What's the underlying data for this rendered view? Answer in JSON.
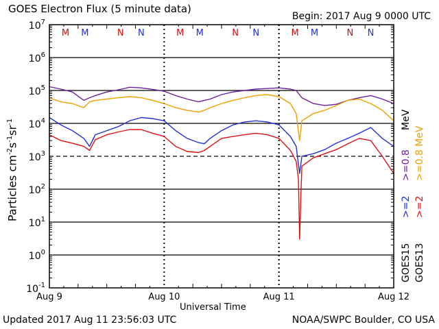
{
  "header": {
    "title": "GOES Electron Flux (5 minute data)",
    "begin": "Begin: 2017 Aug 9 0000 UTC"
  },
  "footer": {
    "updated": "Updated 2017 Aug 11 23:56:03 UTC",
    "credit": "NOAA/SWPC Boulder, CO USA"
  },
  "colors": {
    "goes15_2mev": "#1f2fd6",
    "goes13_2mev": "#e01010",
    "goes15_08mev": "#6a1fa0",
    "goes13_08mev": "#f0a000",
    "marker_m": "#d01010",
    "marker_n": "#d01010",
    "marker_blue": "#1f2fd6"
  },
  "chart_data": {
    "type": "line",
    "title": "GOES Electron Flux (5 minute data)",
    "xlabel": "Universal Time",
    "ylabel": "Particles cm-2s-1sr-1",
    "yscale": "log",
    "ylim": [
      0.1,
      10000000
    ],
    "xlim": [
      0,
      3
    ],
    "x_ticks": [
      {
        "x": 0,
        "label": "Aug 9"
      },
      {
        "x": 1,
        "label": "Aug 10"
      },
      {
        "x": 2,
        "label": "Aug 11"
      },
      {
        "x": 3,
        "label": "Aug 12"
      }
    ],
    "y_ticks": [
      {
        "base": "10",
        "exp": "7"
      },
      {
        "base": "10",
        "exp": "6"
      },
      {
        "base": "10",
        "exp": "5"
      },
      {
        "base": "10",
        "exp": "4"
      },
      {
        "base": "10",
        "exp": "3"
      },
      {
        "base": "10",
        "exp": "2"
      },
      {
        "base": "10",
        "exp": "1"
      },
      {
        "base": "10",
        "exp": "0"
      },
      {
        "base": "10",
        "exp": "-1"
      }
    ],
    "threshold": 1000,
    "markers": [
      {
        "x": 0.14,
        "label": "M",
        "color": "#d01010"
      },
      {
        "x": 0.31,
        "label": "M",
        "color": "#1f2fd6"
      },
      {
        "x": 0.62,
        "label": "N",
        "color": "#d01010"
      },
      {
        "x": 0.8,
        "label": "N",
        "color": "#1f2fd6"
      },
      {
        "x": 1.14,
        "label": "M",
        "color": "#d01010"
      },
      {
        "x": 1.31,
        "label": "M",
        "color": "#1f2fd6"
      },
      {
        "x": 1.62,
        "label": "N",
        "color": "#d01010"
      },
      {
        "x": 1.8,
        "label": "N",
        "color": "#1f2fd6"
      },
      {
        "x": 2.14,
        "label": "M",
        "color": "#d01010"
      },
      {
        "x": 2.31,
        "label": "M",
        "color": "#1f2fd6"
      },
      {
        "x": 2.62,
        "label": "N",
        "color": "#d01010"
      },
      {
        "x": 2.8,
        "label": "N",
        "color": "#1f2fd6"
      }
    ],
    "legend": [
      {
        "label": ">=0.8 MeV",
        "color": "#f0a000",
        "group": "GOES13"
      },
      {
        "label": ">=0.8",
        "color": "#6a1fa0",
        "group": "GOES15"
      },
      {
        "label": "MeV",
        "color": "#000000",
        "group": "units"
      },
      {
        "label": ">=2",
        "color": "#e01010",
        "group": "GOES13"
      },
      {
        "label": ">=2",
        "color": "#1f2fd6",
        "group": "GOES15"
      },
      {
        "label": "GOES13",
        "color": "#000000",
        "group": "sat"
      },
      {
        "label": "GOES15",
        "color": "#000000",
        "group": "sat"
      }
    ],
    "series": [
      {
        "color": "#6a1fa0",
        "x": [
          0,
          0.1,
          0.2,
          0.3,
          0.35,
          0.4,
          0.5,
          0.6,
          0.7,
          0.8,
          0.9,
          1.0,
          1.1,
          1.2,
          1.3,
          1.35,
          1.4,
          1.5,
          1.6,
          1.7,
          1.8,
          1.9,
          2.0,
          2.1,
          2.15,
          2.2,
          2.3,
          2.4,
          2.5,
          2.6,
          2.7,
          2.8,
          2.9,
          3.0
        ],
        "values": [
          130000,
          110000,
          90000,
          50000,
          60000,
          70000,
          90000,
          105000,
          125000,
          120000,
          108000,
          95000,
          70000,
          55000,
          45000,
          50000,
          55000,
          75000,
          90000,
          100000,
          110000,
          115000,
          120000,
          110000,
          100000,
          60000,
          40000,
          35000,
          38000,
          50000,
          60000,
          70000,
          55000,
          40000
        ]
      },
      {
        "color": "#f0a000",
        "x": [
          0,
          0.1,
          0.2,
          0.3,
          0.35,
          0.4,
          0.5,
          0.6,
          0.7,
          0.8,
          0.9,
          1.0,
          1.1,
          1.2,
          1.3,
          1.35,
          1.4,
          1.5,
          1.6,
          1.7,
          1.8,
          1.9,
          2.0,
          2.1,
          2.15,
          2.18,
          2.2,
          2.3,
          2.4,
          2.5,
          2.6,
          2.7,
          2.8,
          2.9,
          3.0
        ],
        "values": [
          60000,
          45000,
          40000,
          30000,
          45000,
          50000,
          55000,
          60000,
          65000,
          60000,
          50000,
          40000,
          30000,
          25000,
          22000,
          25000,
          30000,
          40000,
          50000,
          60000,
          70000,
          75000,
          65000,
          40000,
          20000,
          3000,
          12000,
          20000,
          25000,
          35000,
          50000,
          55000,
          40000,
          25000,
          12000
        ]
      },
      {
        "color": "#1f2fd6",
        "x": [
          0,
          0.1,
          0.2,
          0.3,
          0.35,
          0.4,
          0.5,
          0.6,
          0.7,
          0.8,
          0.9,
          1.0,
          1.1,
          1.2,
          1.3,
          1.35,
          1.4,
          1.5,
          1.6,
          1.7,
          1.8,
          1.9,
          2.0,
          2.1,
          2.15,
          2.18,
          2.2,
          2.3,
          2.4,
          2.5,
          2.6,
          2.7,
          2.8,
          2.9,
          3.0
        ],
        "values": [
          15000,
          9000,
          6000,
          3500,
          2000,
          4500,
          6000,
          8000,
          12000,
          15000,
          14000,
          12000,
          6000,
          3500,
          2600,
          2400,
          3500,
          6000,
          9000,
          11000,
          12000,
          11000,
          9000,
          4000,
          2000,
          300,
          1000,
          1200,
          1600,
          2500,
          3500,
          5000,
          7500,
          3500,
          2000
        ]
      },
      {
        "color": "#e01010",
        "x": [
          0,
          0.1,
          0.2,
          0.3,
          0.35,
          0.4,
          0.5,
          0.6,
          0.7,
          0.8,
          0.9,
          1.0,
          1.1,
          1.2,
          1.3,
          1.35,
          1.4,
          1.5,
          1.6,
          1.7,
          1.8,
          1.9,
          2.0,
          2.1,
          2.15,
          2.17,
          2.18,
          2.19,
          2.2,
          2.3,
          2.4,
          2.5,
          2.6,
          2.7,
          2.8,
          2.9,
          3.0
        ],
        "values": [
          4500,
          3000,
          2500,
          2000,
          1500,
          3200,
          4500,
          5500,
          6500,
          6500,
          5000,
          4000,
          2000,
          1400,
          1300,
          1500,
          2000,
          3500,
          4000,
          4500,
          5000,
          4500,
          3500,
          1500,
          700,
          200,
          3,
          50,
          500,
          900,
          1200,
          1600,
          2400,
          3500,
          3000,
          1000,
          300
        ]
      }
    ]
  }
}
